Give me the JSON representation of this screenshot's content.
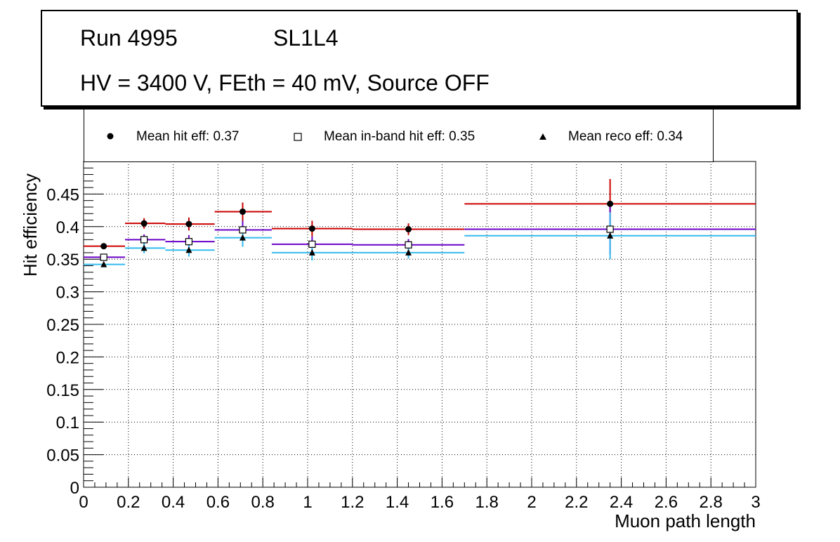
{
  "header": {
    "run": "Run 4995",
    "layer": "SL1L4",
    "conditions": "HV = 3400 V, FEth = 40 mV, Source OFF"
  },
  "legend": {
    "hit": "Mean hit  eff: 0.37",
    "inband": "Mean in-band hit eff: 0.35",
    "reco": "Mean reco eff: 0.34"
  },
  "colors": {
    "hit": "#cc0000",
    "inband": "#6a00c8",
    "reco": "#33bbee",
    "grid": "#000000"
  },
  "chart_data": {
    "type": "scatter",
    "title": "",
    "xlabel": "Muon path length",
    "ylabel": "Hit efficiency",
    "xlim": [
      0,
      3
    ],
    "ylim": [
      0,
      0.5
    ],
    "xticks": [
      "0",
      "0.2",
      "0.4",
      "0.6",
      "0.8",
      "1",
      "1.2",
      "1.4",
      "1.6",
      "1.8",
      "2",
      "2.2",
      "2.4",
      "2.6",
      "2.8",
      "3"
    ],
    "yticks": [
      "0",
      "0.05",
      "0.1",
      "0.15",
      "0.2",
      "0.25",
      "0.3",
      "0.35",
      "0.4",
      "0.45"
    ],
    "grid": true,
    "series": [
      {
        "name": "Mean hit  eff: 0.37",
        "key": "hit",
        "marker": "circle",
        "points": [
          {
            "x": 0.09,
            "xlo": 0.0,
            "xhi": 0.185,
            "y": 0.37,
            "ylo": 0.368,
            "yhi": 0.372
          },
          {
            "x": 0.27,
            "xlo": 0.185,
            "xhi": 0.365,
            "y": 0.405,
            "ylo": 0.397,
            "yhi": 0.413
          },
          {
            "x": 0.47,
            "xlo": 0.365,
            "xhi": 0.585,
            "y": 0.404,
            "ylo": 0.394,
            "yhi": 0.414
          },
          {
            "x": 0.71,
            "xlo": 0.585,
            "xhi": 0.84,
            "y": 0.423,
            "ylo": 0.409,
            "yhi": 0.437
          },
          {
            "x": 1.02,
            "xlo": 0.84,
            "xhi": 1.2,
            "y": 0.397,
            "ylo": 0.385,
            "yhi": 0.409
          },
          {
            "x": 1.45,
            "xlo": 1.2,
            "xhi": 1.7,
            "y": 0.396,
            "ylo": 0.387,
            "yhi": 0.405
          },
          {
            "x": 2.35,
            "xlo": 1.7,
            "xhi": 3.0,
            "y": 0.435,
            "ylo": 0.397,
            "yhi": 0.473
          }
        ]
      },
      {
        "name": "Mean in-band hit eff: 0.35",
        "key": "inband",
        "marker": "open-square",
        "points": [
          {
            "x": 0.09,
            "xlo": 0.0,
            "xhi": 0.185,
            "y": 0.353,
            "ylo": 0.351,
            "yhi": 0.355
          },
          {
            "x": 0.27,
            "xlo": 0.185,
            "xhi": 0.365,
            "y": 0.38,
            "ylo": 0.372,
            "yhi": 0.388
          },
          {
            "x": 0.47,
            "xlo": 0.365,
            "xhi": 0.585,
            "y": 0.377,
            "ylo": 0.367,
            "yhi": 0.387
          },
          {
            "x": 0.71,
            "xlo": 0.585,
            "xhi": 0.84,
            "y": 0.395,
            "ylo": 0.381,
            "yhi": 0.409
          },
          {
            "x": 1.02,
            "xlo": 0.84,
            "xhi": 1.2,
            "y": 0.373,
            "ylo": 0.361,
            "yhi": 0.385
          },
          {
            "x": 1.45,
            "xlo": 1.2,
            "xhi": 1.7,
            "y": 0.372,
            "ylo": 0.363,
            "yhi": 0.381
          },
          {
            "x": 2.35,
            "xlo": 1.7,
            "xhi": 3.0,
            "y": 0.396,
            "ylo": 0.358,
            "yhi": 0.434
          }
        ]
      },
      {
        "name": "Mean reco eff: 0.34",
        "key": "reco",
        "marker": "triangle",
        "points": [
          {
            "x": 0.09,
            "xlo": 0.0,
            "xhi": 0.185,
            "y": 0.342,
            "ylo": 0.34,
            "yhi": 0.344
          },
          {
            "x": 0.27,
            "xlo": 0.185,
            "xhi": 0.365,
            "y": 0.367,
            "ylo": 0.359,
            "yhi": 0.375
          },
          {
            "x": 0.47,
            "xlo": 0.365,
            "xhi": 0.585,
            "y": 0.364,
            "ylo": 0.354,
            "yhi": 0.374
          },
          {
            "x": 0.71,
            "xlo": 0.585,
            "xhi": 0.84,
            "y": 0.383,
            "ylo": 0.369,
            "yhi": 0.397
          },
          {
            "x": 1.02,
            "xlo": 0.84,
            "xhi": 1.2,
            "y": 0.36,
            "ylo": 0.348,
            "yhi": 0.372
          },
          {
            "x": 1.45,
            "xlo": 1.2,
            "xhi": 1.7,
            "y": 0.36,
            "ylo": 0.351,
            "yhi": 0.369
          },
          {
            "x": 2.35,
            "xlo": 1.7,
            "xhi": 3.0,
            "y": 0.386,
            "ylo": 0.35,
            "yhi": 0.422
          }
        ]
      }
    ]
  }
}
